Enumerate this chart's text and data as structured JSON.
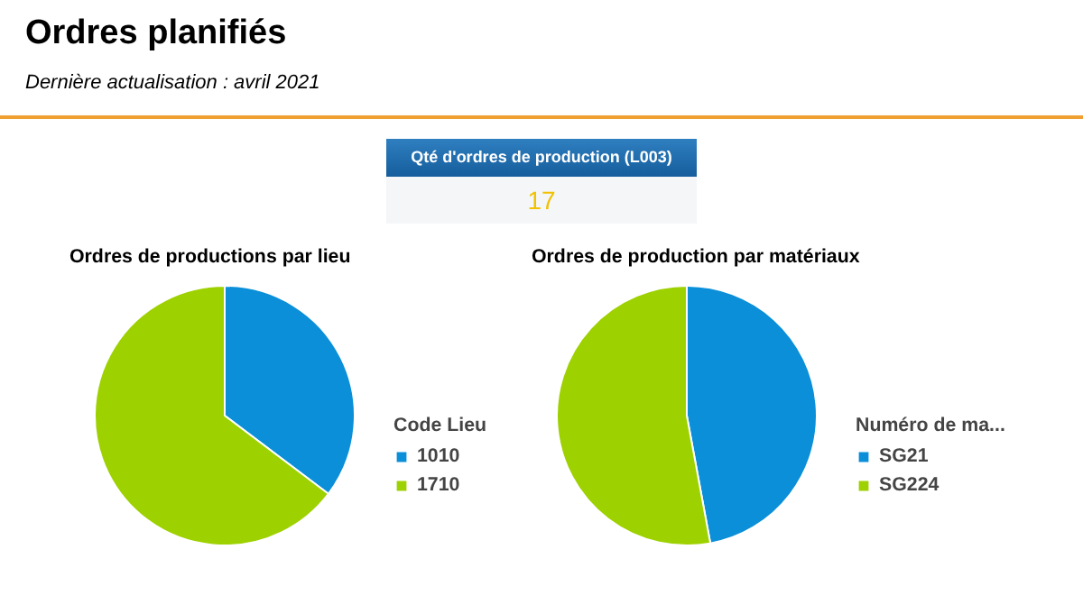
{
  "chart_data": [
    {
      "type": "other",
      "title": "Ordres planifiés",
      "subtitle": "Dernière actualisation : avril 2021",
      "annotations": [
        "Qté d'ordres de production (L003)",
        "17"
      ]
    },
    {
      "type": "pie",
      "title": "Ordres de productions par lieu",
      "legend_title": "Code Lieu",
      "categories": [
        "1010",
        "1710"
      ],
      "values": [
        35.3,
        64.7
      ],
      "colors": [
        "#0a8fd8",
        "#9dd100"
      ],
      "legend": "right"
    },
    {
      "type": "pie",
      "title": "Ordres de production par matériaux",
      "legend_title": "Numéro de ma...",
      "categories": [
        "SG21",
        "SG224"
      ],
      "values": [
        47.1,
        52.9
      ],
      "colors": [
        "#0a8fd8",
        "#9dd100"
      ],
      "legend": "right"
    }
  ]
}
